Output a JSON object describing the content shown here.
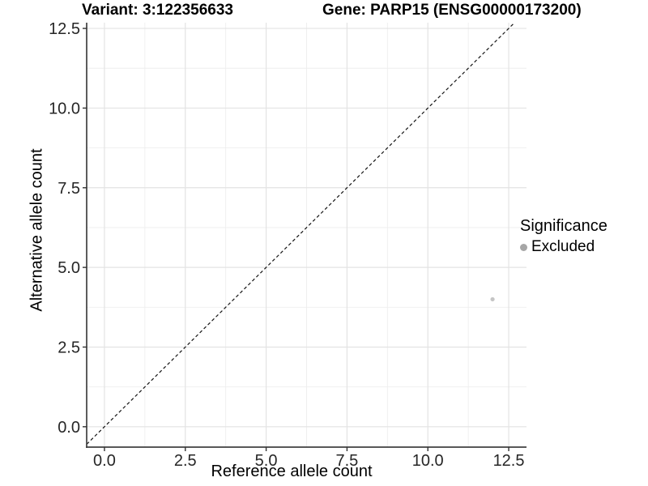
{
  "figure": {
    "title_left": "Variant: 3:122356633",
    "title_right": "Gene: PARP15 (ENSG00000173200)"
  },
  "legend": {
    "title": "Significance",
    "items": [
      {
        "label": "Excluded",
        "marker_color": "#a6a6a6"
      }
    ]
  },
  "chart_data": {
    "type": "scatter",
    "title": "Variant: 3:122356633    Gene: PARP15 (ENSG00000173200)",
    "xlabel": "Reference allele count",
    "ylabel": "Alternative allele count",
    "xlim": [
      -0.55,
      13.05
    ],
    "ylim": [
      -0.64,
      12.68
    ],
    "x_ticks": [
      0.0,
      2.5,
      5.0,
      7.5,
      10.0,
      12.5
    ],
    "x_tick_labels": [
      "0.0",
      "2.5",
      "5.0",
      "7.5",
      "10.0",
      "12.5"
    ],
    "y_ticks": [
      0.0,
      2.5,
      5.0,
      7.5,
      10.0,
      12.5
    ],
    "y_tick_labels": [
      "0.0",
      "2.5",
      "5.0",
      "7.5",
      "10.0",
      "12.5"
    ],
    "x_minor_ticks": [
      1.25,
      3.75,
      6.25,
      8.75,
      11.25
    ],
    "y_minor_ticks": [
      1.25,
      3.75,
      6.25,
      8.75,
      11.25
    ],
    "grid": "major+minor",
    "legend_position": "right",
    "legend_title": "Significance",
    "series": [
      {
        "name": "Excluded",
        "color": "#c5c5c5",
        "points": [
          {
            "x": 12,
            "y": 4
          }
        ]
      }
    ],
    "reference_line": {
      "kind": "identity y=x",
      "style": "dashed",
      "color": "#141414",
      "span": [
        -0.55,
        12.68
      ]
    }
  },
  "style": {
    "grid_major_color": "#e3e3e3",
    "grid_minor_color": "#eeeeee",
    "axis_color": "#404040",
    "tick_color": "#333333",
    "tick_label_color": "#262626"
  }
}
